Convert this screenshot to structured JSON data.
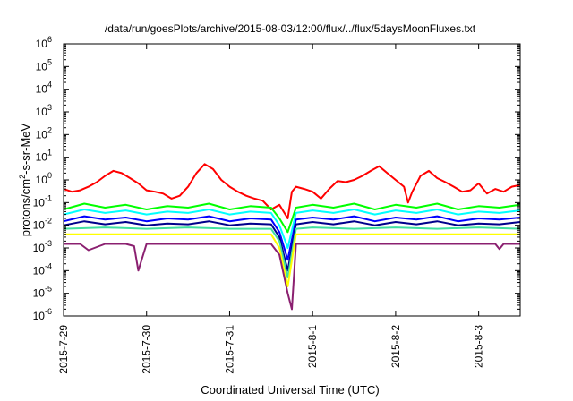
{
  "chart_data": {
    "type": "line",
    "title": "/data/run/goesPlots/archive/2015-08-03/12:00/flux/../flux/5daysMoonFluxes.txt",
    "xlabel": "Coordinated Universal Time (UTC)",
    "ylabel": "protons/cm2-s-sr-MeV",
    "ylabel_parts": {
      "prefix": "protons/cm",
      "sup": "2",
      "suffix": "-s-sr-MeV"
    },
    "yscale": "log",
    "ylim": [
      1e-06,
      1000000.0
    ],
    "xlim_days": [
      0,
      5.5
    ],
    "x_ticks": [
      {
        "day": 0,
        "label": "2015-7-29"
      },
      {
        "day": 1,
        "label": "2015-7-30"
      },
      {
        "day": 2,
        "label": "2015-7-31"
      },
      {
        "day": 3,
        "label": "2015-8-1"
      },
      {
        "day": 4,
        "label": "2015-8-2"
      },
      {
        "day": 5,
        "label": "2015-8-3"
      }
    ],
    "y_ticks": [
      {
        "value": 1e-06,
        "base": "10",
        "exp": "-6"
      },
      {
        "value": 1e-05,
        "base": "10",
        "exp": "-5"
      },
      {
        "value": 0.0001,
        "base": "10",
        "exp": "-4"
      },
      {
        "value": 0.001,
        "base": "10",
        "exp": "-3"
      },
      {
        "value": 0.01,
        "base": "10",
        "exp": "-2"
      },
      {
        "value": 0.1,
        "base": "10",
        "exp": "-1"
      },
      {
        "value": 1.0,
        "base": "10",
        "exp": "0"
      },
      {
        "value": 10.0,
        "base": "10",
        "exp": "1"
      },
      {
        "value": 100.0,
        "base": "10",
        "exp": "2"
      },
      {
        "value": 1000.0,
        "base": "10",
        "exp": "3"
      },
      {
        "value": 10000.0,
        "base": "10",
        "exp": "4"
      },
      {
        "value": 100000.0,
        "base": "10",
        "exp": "5"
      },
      {
        "value": 1000000.0,
        "base": "10",
        "exp": "6"
      }
    ],
    "grid": false,
    "series": [
      {
        "color": "#ff0000",
        "x": [
          0,
          0.1,
          0.2,
          0.3,
          0.4,
          0.5,
          0.6,
          0.7,
          0.8,
          0.9,
          1.0,
          1.1,
          1.2,
          1.3,
          1.4,
          1.5,
          1.6,
          1.7,
          1.8,
          1.9,
          2.0,
          2.1,
          2.2,
          2.3,
          2.4,
          2.5,
          2.6,
          2.7,
          2.75,
          2.8,
          2.9,
          3.0,
          3.1,
          3.2,
          3.3,
          3.4,
          3.5,
          3.6,
          3.7,
          3.8,
          3.9,
          4.0,
          4.1,
          4.15,
          4.2,
          4.3,
          4.4,
          4.5,
          4.6,
          4.7,
          4.8,
          4.9,
          5.0,
          5.1,
          5.2,
          5.3,
          5.4,
          5.5
        ],
        "y": [
          0.4,
          0.3,
          0.35,
          0.5,
          0.8,
          1.5,
          2.5,
          2.0,
          1.2,
          0.7,
          0.35,
          0.3,
          0.25,
          0.15,
          0.2,
          0.5,
          2.0,
          5.0,
          3.0,
          1.0,
          0.5,
          0.3,
          0.2,
          0.15,
          0.12,
          0.05,
          0.08,
          0.02,
          0.3,
          0.5,
          0.4,
          0.3,
          0.15,
          0.4,
          0.9,
          0.8,
          1.0,
          1.5,
          2.5,
          4.0,
          2.0,
          1.0,
          0.5,
          0.1,
          0.3,
          1.5,
          2.5,
          1.2,
          0.8,
          0.5,
          0.3,
          0.35,
          0.7,
          0.25,
          0.4,
          0.3,
          0.5,
          0.6
        ]
      },
      {
        "color": "#00ff00",
        "x": [
          0,
          0.25,
          0.5,
          0.75,
          1.0,
          1.25,
          1.5,
          1.75,
          2.0,
          2.25,
          2.5,
          2.6,
          2.7,
          2.8,
          3.0,
          3.25,
          3.5,
          3.75,
          4.0,
          4.25,
          4.5,
          4.75,
          5.0,
          5.25,
          5.5
        ],
        "y": [
          0.05,
          0.09,
          0.06,
          0.08,
          0.05,
          0.07,
          0.06,
          0.09,
          0.05,
          0.07,
          0.06,
          0.02,
          0.005,
          0.06,
          0.08,
          0.06,
          0.09,
          0.05,
          0.08,
          0.06,
          0.09,
          0.05,
          0.07,
          0.06,
          0.08
        ]
      },
      {
        "color": "#00ffff",
        "x": [
          0,
          0.25,
          0.5,
          0.75,
          1.0,
          1.25,
          1.5,
          1.75,
          2.0,
          2.25,
          2.5,
          2.6,
          2.7,
          2.8,
          3.0,
          3.25,
          3.5,
          3.75,
          4.0,
          4.25,
          4.5,
          4.75,
          5.0,
          5.25,
          5.5
        ],
        "y": [
          0.03,
          0.05,
          0.035,
          0.045,
          0.03,
          0.04,
          0.035,
          0.05,
          0.03,
          0.04,
          0.035,
          0.01,
          0.001,
          0.035,
          0.045,
          0.035,
          0.05,
          0.03,
          0.045,
          0.035,
          0.05,
          0.03,
          0.04,
          0.035,
          0.045
        ]
      },
      {
        "color": "#0000ff",
        "x": [
          0,
          0.25,
          0.5,
          0.75,
          1.0,
          1.25,
          1.5,
          1.75,
          2.0,
          2.25,
          2.5,
          2.6,
          2.7,
          2.8,
          3.0,
          3.25,
          3.5,
          3.75,
          4.0,
          4.25,
          4.5,
          4.75,
          5.0,
          5.25,
          5.5
        ],
        "y": [
          0.015,
          0.025,
          0.018,
          0.022,
          0.015,
          0.02,
          0.018,
          0.025,
          0.015,
          0.02,
          0.018,
          0.005,
          0.0003,
          0.018,
          0.022,
          0.018,
          0.025,
          0.015,
          0.022,
          0.018,
          0.025,
          0.015,
          0.02,
          0.018,
          0.022
        ]
      },
      {
        "color": "#00008b",
        "x": [
          0,
          0.25,
          0.5,
          0.75,
          1.0,
          1.25,
          1.5,
          1.75,
          2.0,
          2.25,
          2.5,
          2.6,
          2.7,
          2.8,
          3.0,
          3.25,
          3.5,
          3.75,
          4.0,
          4.25,
          4.5,
          4.75,
          5.0,
          5.25,
          5.5
        ],
        "y": [
          0.01,
          0.015,
          0.011,
          0.014,
          0.01,
          0.012,
          0.011,
          0.015,
          0.01,
          0.012,
          0.011,
          0.003,
          0.0001,
          0.011,
          0.014,
          0.011,
          0.015,
          0.01,
          0.014,
          0.011,
          0.015,
          0.01,
          0.012,
          0.011,
          0.014
        ]
      },
      {
        "color": "#40e0a0",
        "x": [
          0,
          0.5,
          1.0,
          1.5,
          2.0,
          2.5,
          2.6,
          2.7,
          2.8,
          3.0,
          3.5,
          4.0,
          4.5,
          5.0,
          5.5
        ],
        "y": [
          0.007,
          0.008,
          0.007,
          0.008,
          0.007,
          0.007,
          0.002,
          5e-05,
          0.007,
          0.008,
          0.007,
          0.008,
          0.007,
          0.008,
          0.007
        ]
      },
      {
        "color": "#ffff00",
        "x": [
          0,
          0.5,
          1.0,
          1.5,
          2.0,
          2.5,
          2.6,
          2.7,
          2.8,
          3.0,
          3.5,
          4.0,
          4.5,
          5.0,
          5.5
        ],
        "y": [
          0.004,
          0.004,
          0.004,
          0.004,
          0.004,
          0.004,
          0.001,
          2e-05,
          0.004,
          0.004,
          0.004,
          0.004,
          0.004,
          0.004,
          0.004
        ]
      },
      {
        "color": "#8b2070",
        "x": [
          0,
          0.2,
          0.3,
          0.5,
          0.75,
          0.85,
          0.9,
          1.0,
          1.25,
          1.5,
          1.75,
          2.0,
          2.25,
          2.5,
          2.6,
          2.7,
          2.75,
          2.8,
          3.0,
          3.5,
          4.0,
          4.5,
          5.0,
          5.2,
          5.25,
          5.3,
          5.5
        ],
        "y": [
          0.0015,
          0.0015,
          0.0008,
          0.0015,
          0.0015,
          0.0012,
          0.0001,
          0.0015,
          0.0015,
          0.0015,
          0.0015,
          0.0015,
          0.0015,
          0.0015,
          0.0005,
          1e-05,
          2e-06,
          0.0015,
          0.0015,
          0.0015,
          0.0015,
          0.0015,
          0.0015,
          0.0015,
          0.0009,
          0.0015,
          0.0015
        ]
      }
    ]
  }
}
